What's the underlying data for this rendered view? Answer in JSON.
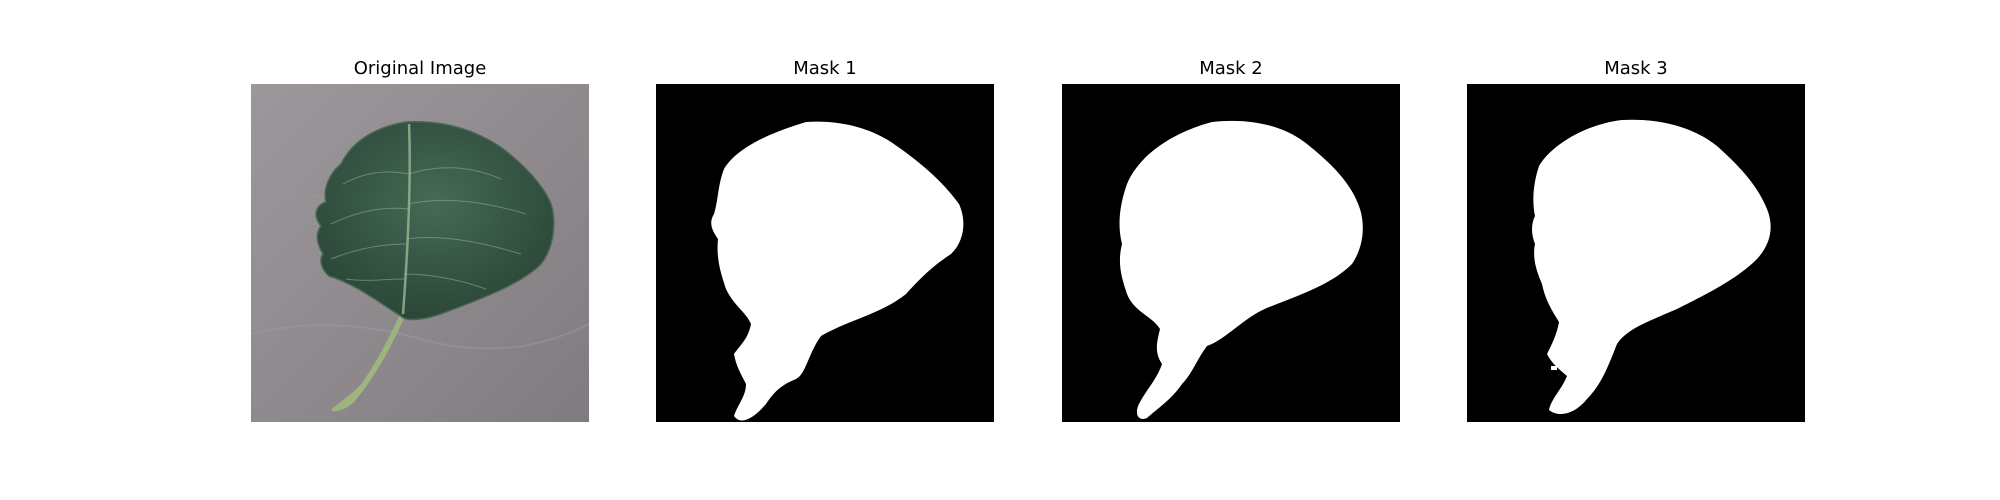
{
  "figure": {
    "panels": [
      {
        "title": "Original Image"
      },
      {
        "title": "Mask 1"
      },
      {
        "title": "Mask 2"
      },
      {
        "title": "Mask 3"
      }
    ]
  },
  "colors": {
    "background": "#ffffff",
    "mask_background": "#000000",
    "mask_foreground": "#ffffff",
    "surface": "#8f8b8f",
    "leaf_dark": "#2f4d3e",
    "leaf_mid": "#3d5f4d",
    "vein": "#9cb894",
    "stem": "#9ab37a"
  }
}
